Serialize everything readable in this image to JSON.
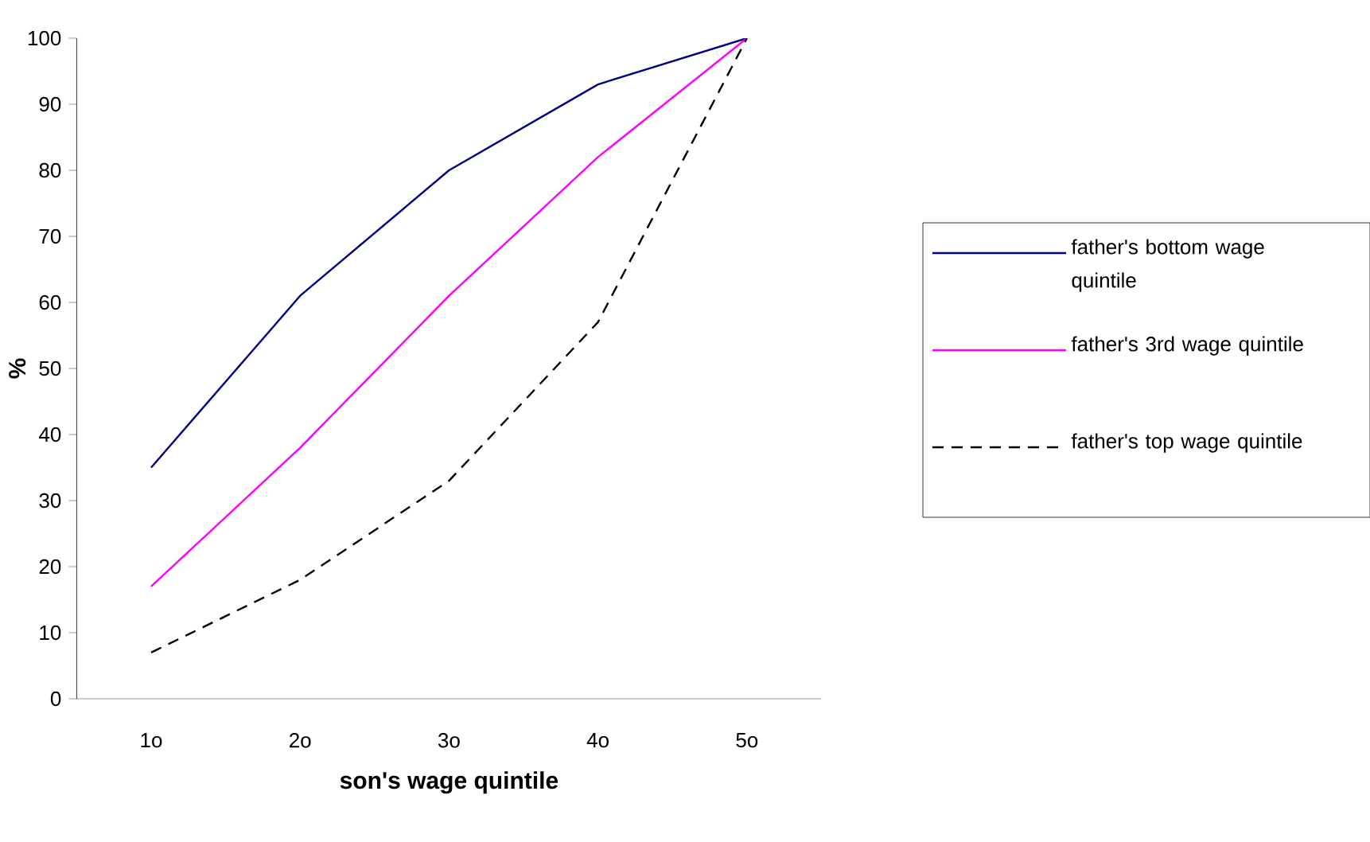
{
  "chart_data": {
    "type": "line",
    "xlabel": "son's wage quintile",
    "ylabel": "%",
    "categories": [
      "1o",
      "2o",
      "3o",
      "4o",
      "5o"
    ],
    "series": [
      {
        "name": "father's bottom wage quintile",
        "color": "#000080",
        "line_style": "solid",
        "values": [
          35,
          61,
          80,
          93,
          100
        ]
      },
      {
        "name": "father's 3rd wage quintile",
        "color": "#ff00ff",
        "line_style": "solid",
        "values": [
          17,
          38,
          61,
          82,
          100
        ]
      },
      {
        "name": "father's top wage quintile",
        "color": "#000000",
        "line_style": "dashed",
        "values": [
          7,
          18,
          33,
          57,
          100
        ]
      }
    ],
    "ylim": [
      0,
      100
    ],
    "yticks": [
      0,
      10,
      20,
      30,
      40,
      50,
      60,
      70,
      80,
      90,
      100
    ],
    "grid": false,
    "legend": "right",
    "marker": "none"
  }
}
